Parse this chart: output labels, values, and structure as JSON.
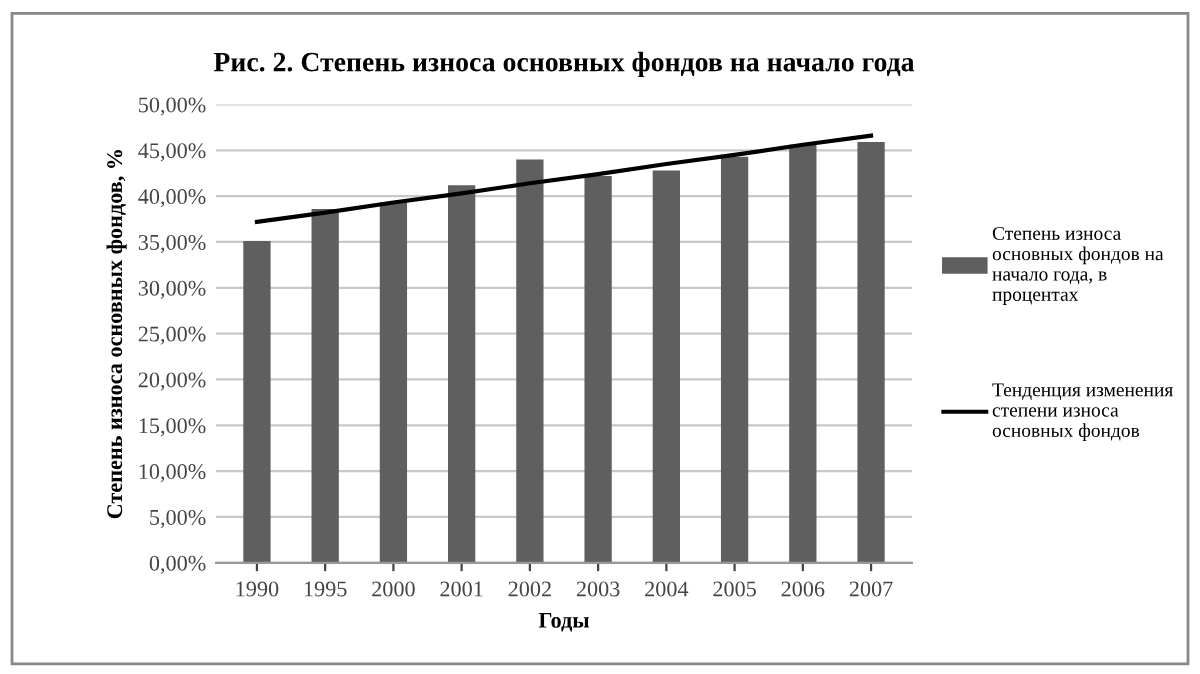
{
  "chart_data": {
    "type": "bar",
    "title": "Рис. 2. Степень износа основных фондов на начало года",
    "xlabel": "Годы",
    "ylabel": "Степень износа основных фондов, %",
    "categories": [
      "1990",
      "1995",
      "2000",
      "2001",
      "2002",
      "2003",
      "2004",
      "2005",
      "2006",
      "2007"
    ],
    "series": [
      {
        "name": "Степень износа основных фондов на начало года, в процентах",
        "color": "#5f5f5f",
        "values": [
          35.1,
          38.6,
          39.3,
          41.2,
          44.0,
          42.2,
          42.8,
          44.3,
          45.6,
          45.9
        ]
      },
      {
        "name": "Тенденция изменения степени износа основных фондов",
        "type": "line",
        "color": "#000000",
        "values": [
          37.2,
          38.2,
          39.3,
          40.3,
          41.4,
          42.4,
          43.5,
          44.5,
          45.6,
          46.6
        ]
      }
    ],
    "ylim": [
      0,
      50
    ],
    "yticks": [
      {
        "value": 0,
        "label": "0,00%"
      },
      {
        "value": 5,
        "label": "5,00%"
      },
      {
        "value": 10,
        "label": "10,00%"
      },
      {
        "value": 15,
        "label": "15,00%"
      },
      {
        "value": 20,
        "label": "20,00%"
      },
      {
        "value": 25,
        "label": "25,00%"
      },
      {
        "value": 30,
        "label": "30,00%"
      },
      {
        "value": 35,
        "label": "35,00%"
      },
      {
        "value": 40,
        "label": "40,00%"
      },
      {
        "value": 45,
        "label": "45,00%"
      },
      {
        "value": 50,
        "label": "50,00%"
      }
    ],
    "grid": "y",
    "legend": "right",
    "marker": "none",
    "line_style": "solid"
  }
}
